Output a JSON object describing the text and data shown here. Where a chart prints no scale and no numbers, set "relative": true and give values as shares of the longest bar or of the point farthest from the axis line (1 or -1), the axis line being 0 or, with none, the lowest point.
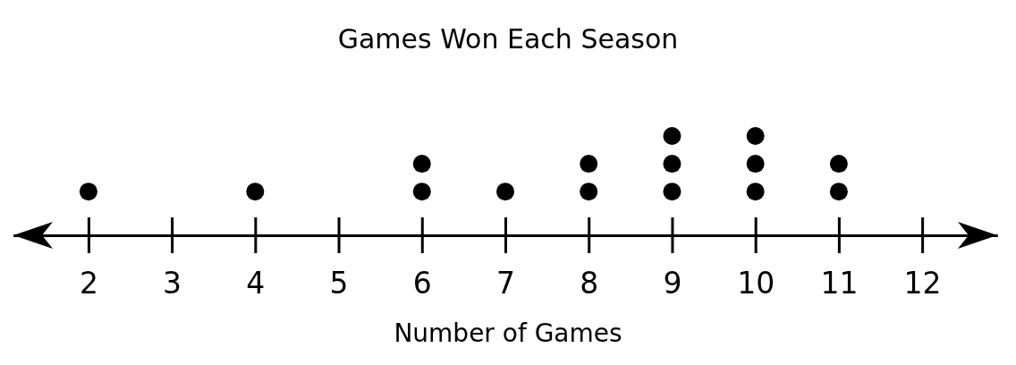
{
  "chart_data": {
    "type": "scatter",
    "title": "Games Won Each Season",
    "xlabel": "Number of Games",
    "x": [
      2,
      4,
      6,
      6,
      7,
      8,
      8,
      9,
      9,
      9,
      10,
      10,
      10,
      11,
      11
    ],
    "values": [
      0.44,
      0.44,
      0.44,
      0.72,
      0.44,
      0.44,
      0.72,
      0.44,
      0.72,
      1,
      0.44,
      0.72,
      1,
      0.44,
      0.72
    ],
    "relative": true,
    "color": "#000000",
    "marker": "circle",
    "xlim": [
      1.1,
      12.9
    ],
    "xticks": [
      2,
      3,
      4,
      5,
      6,
      7,
      8,
      9,
      10,
      11,
      12
    ],
    "tick_labels": "x",
    "grid": false
  }
}
